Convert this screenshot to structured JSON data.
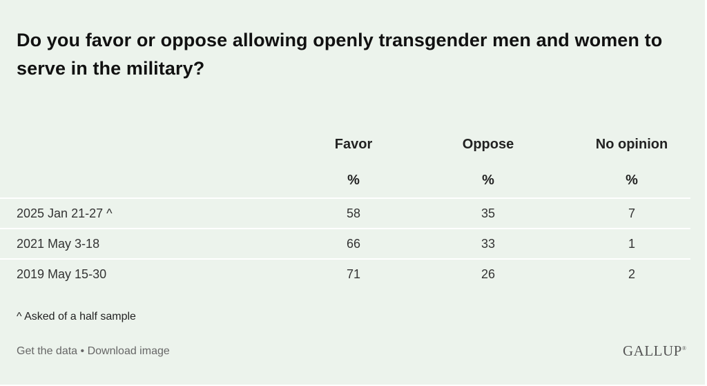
{
  "title": "Do you favor or oppose allowing openly transgender men and women to serve in the military?",
  "chart_data": {
    "type": "table",
    "columns": [
      "Favor",
      "Oppose",
      "No opinion"
    ],
    "units": [
      "%",
      "%",
      "%"
    ],
    "rows": [
      {
        "label": "2025 Jan 21-27 ^",
        "values": [
          "58",
          "35",
          "7"
        ]
      },
      {
        "label": "2021 May 3-18",
        "values": [
          "66",
          "33",
          "1"
        ]
      },
      {
        "label": "2019 May 15-30",
        "values": [
          "71",
          "26",
          "2"
        ]
      }
    ]
  },
  "footnote": "^ Asked of a half sample",
  "footer": {
    "get_data": "Get the data",
    "separator": "•",
    "download": "Download image",
    "brand": "GALLUP"
  },
  "colors": {
    "background": "#ecf3ec",
    "text": "#222222",
    "muted": "#666666"
  }
}
